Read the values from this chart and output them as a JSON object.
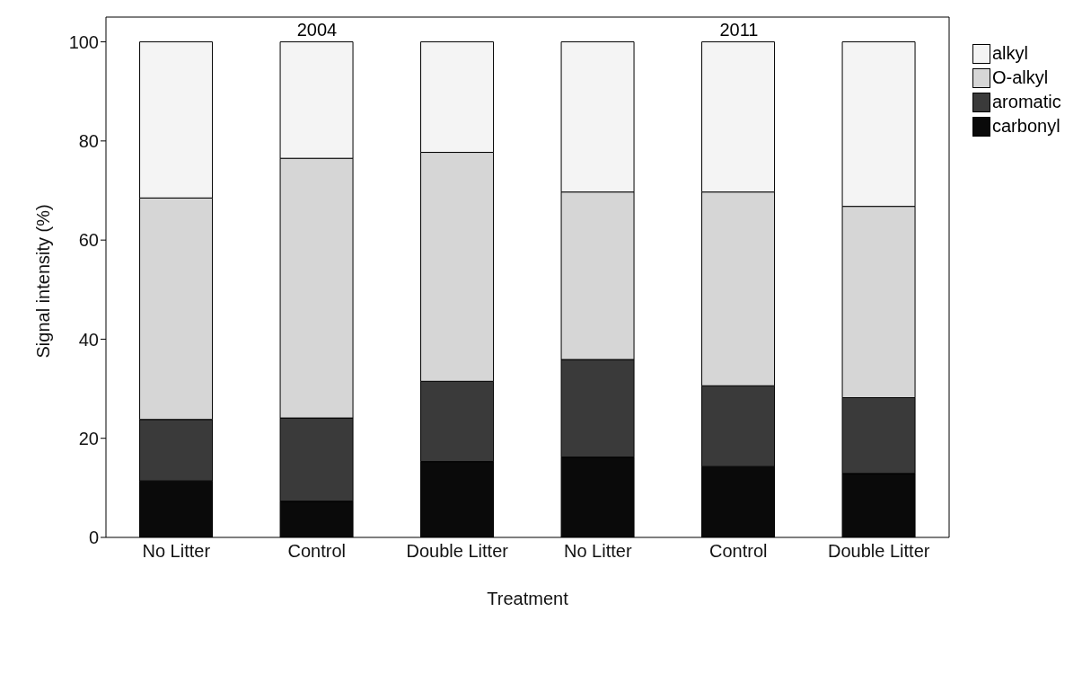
{
  "chart_data": {
    "type": "bar",
    "stacked": true,
    "xlabel": "Treatment",
    "ylabel": "Signal intensity (%)",
    "categories": [
      "No Litter",
      "Control",
      "Double Litter",
      "No Litter",
      "Control",
      "Double Litter"
    ],
    "series": [
      {
        "name": "carbonyl",
        "color": "#0a0a0a",
        "values": [
          11.4,
          7.3,
          15.3,
          16.2,
          14.3,
          12.9
        ]
      },
      {
        "name": "aromatic",
        "color": "#3a3a3a",
        "values": [
          12.4,
          16.8,
          16.2,
          19.7,
          16.3,
          15.3
        ]
      },
      {
        "name": "O-alkyl",
        "color": "#d6d6d6",
        "values": [
          44.7,
          52.4,
          46.2,
          33.8,
          39.1,
          38.6
        ]
      },
      {
        "name": "alkyl",
        "color": "#f4f4f4",
        "values": [
          31.5,
          23.5,
          22.3,
          30.3,
          30.3,
          33.2
        ]
      }
    ],
    "ylim": [
      0,
      105
    ],
    "yticks": [
      0,
      20,
      40,
      60,
      80,
      100
    ],
    "grid": false,
    "legend": "top right",
    "annotations": [
      "2004",
      "2011"
    ]
  }
}
